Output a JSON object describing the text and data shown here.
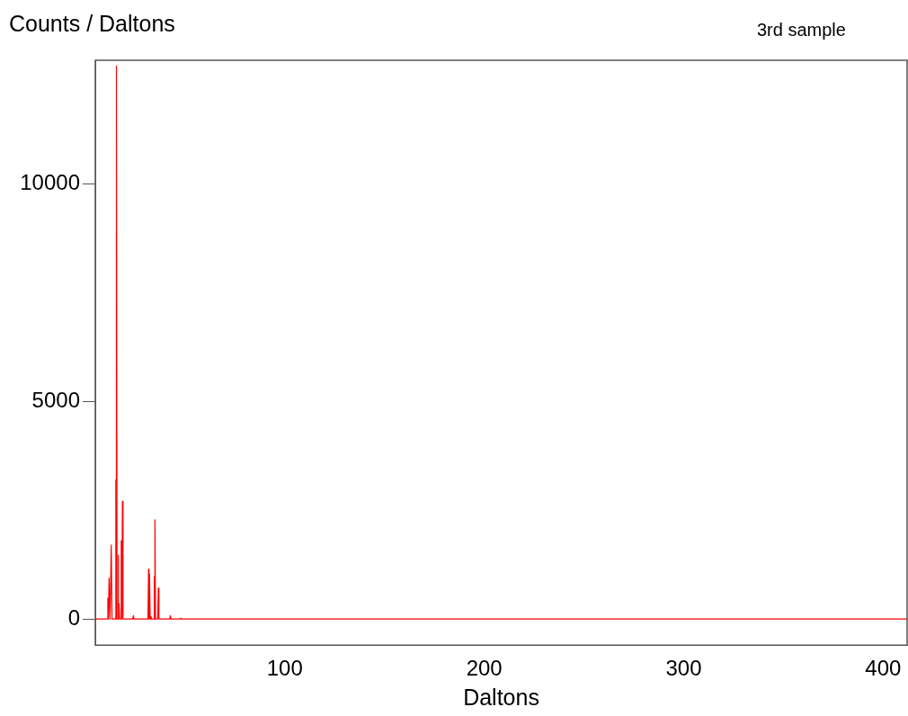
{
  "chart_data": {
    "type": "line",
    "title": "3rd sample",
    "xlabel": "Daltons",
    "ylabel": "Counts / Daltons",
    "x": [
      5,
      11.0,
      11.3,
      11.6,
      11.9,
      12.4,
      13.0,
      13.4,
      15.1,
      15.3,
      15.45,
      15.6,
      15.9,
      16.3,
      16.5,
      16.7,
      16.9,
      17.2,
      17.8,
      18.0,
      18.3,
      18.6,
      18.9,
      23.8,
      24.1,
      24.4,
      31.4,
      31.7,
      31.95,
      32.2,
      32.5,
      32.9,
      33.2,
      34.4,
      34.6,
      34.75,
      34.9,
      35.2,
      36.3,
      36.6,
      36.9,
      42.3,
      42.6,
      42.9,
      47.5,
      47.8,
      48.1,
      412
    ],
    "series": [
      {
        "color": "#ff0000",
        "values": [
          0,
          0,
          480,
          0,
          940,
          0,
          1700,
          0,
          0,
          3200,
          0,
          12700,
          0,
          0,
          1470,
          0,
          350,
          0,
          0,
          1800,
          0,
          2700,
          0,
          0,
          80,
          0,
          0,
          1140,
          0,
          1030,
          0,
          60,
          0,
          0,
          970,
          0,
          2280,
          0,
          0,
          710,
          0,
          0,
          80,
          0,
          0,
          20,
          0,
          0
        ]
      }
    ],
    "xlim": [
      5,
      412
    ],
    "ylim": [
      -600,
      12830
    ],
    "xticks": [
      100,
      200,
      300,
      400
    ],
    "yticks": [
      0,
      5000,
      10000
    ],
    "grid": false,
    "legend": false,
    "marker": "none"
  }
}
